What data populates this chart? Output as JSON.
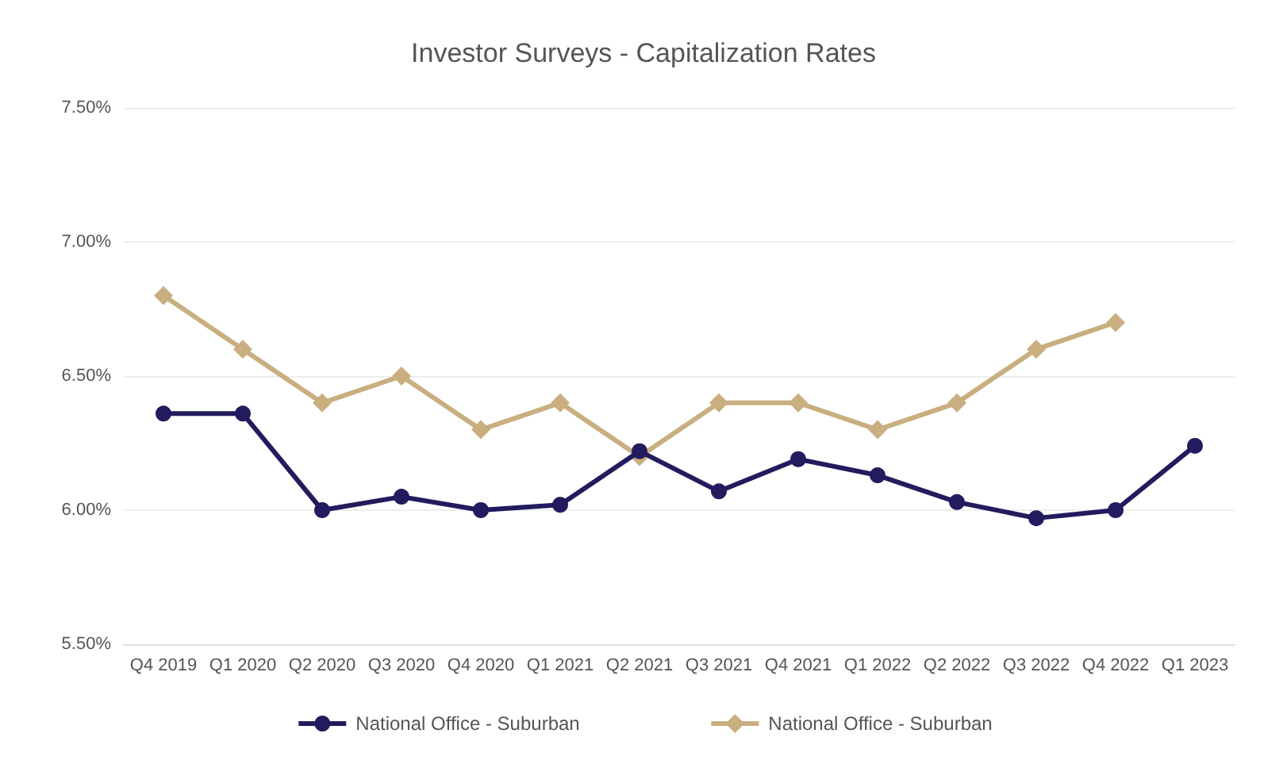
{
  "chart_data": {
    "type": "line",
    "title": "Investor Surveys - Capitalization Rates",
    "categories": [
      "Q4 2019",
      "Q1 2020",
      "Q2 2020",
      "Q3 2020",
      "Q4 2020",
      "Q1 2021",
      "Q2 2021",
      "Q3 2021",
      "Q4 2021",
      "Q1 2022",
      "Q2 2022",
      "Q3 2022",
      "Q4 2022",
      "Q1 2023"
    ],
    "series": [
      {
        "name": "National Office - Suburban",
        "color": "#221c5e",
        "marker": "circle",
        "values": [
          6.36,
          6.36,
          6.0,
          6.05,
          6.0,
          6.02,
          6.22,
          6.07,
          6.19,
          6.13,
          6.03,
          5.97,
          6.0,
          6.24
        ]
      },
      {
        "name": "National Office - Suburban",
        "color": "#c9ae80",
        "marker": "diamond",
        "values": [
          6.8,
          6.6,
          6.4,
          6.5,
          6.3,
          6.4,
          6.2,
          6.4,
          6.4,
          6.3,
          6.4,
          6.6,
          6.7,
          null
        ]
      }
    ],
    "ylim": [
      5.5,
      7.5
    ],
    "yticks": [
      {
        "value": 5.5,
        "label": "5.50%"
      },
      {
        "value": 6.0,
        "label": "6.00%"
      },
      {
        "value": 6.5,
        "label": "6.50%"
      },
      {
        "value": 7.0,
        "label": "7.00%"
      },
      {
        "value": 7.5,
        "label": "7.50%"
      }
    ],
    "grid": "y",
    "legend": "bottom",
    "line_style": "solid"
  }
}
